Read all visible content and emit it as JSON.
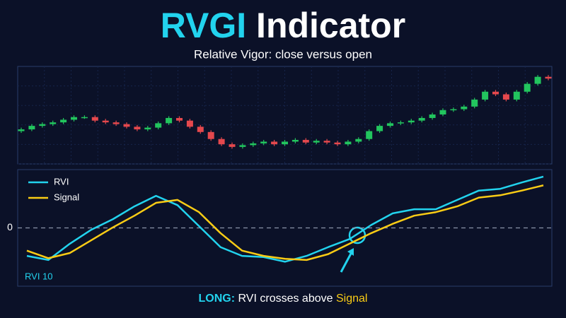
{
  "title_accent": "RVGI",
  "title_rest": "Indicator",
  "subtitle": "Relative Vigor: close versus open",
  "chart_data": [
    {
      "type": "candlestick",
      "up_color": "#22c55e",
      "down_color": "#e5484d",
      "ylim": [
        0,
        100
      ],
      "grid": true,
      "open": [
        31,
        33,
        37,
        39,
        41,
        44,
        47,
        47,
        43,
        41,
        39,
        36,
        33,
        35,
        40,
        46,
        43,
        36,
        30,
        22,
        16,
        13,
        15,
        17,
        19,
        16,
        19,
        21,
        18,
        20,
        18,
        16,
        19,
        22,
        31,
        37,
        40,
        41,
        43,
        46,
        50,
        55,
        56,
        59,
        67,
        76,
        73,
        67,
        76,
        85,
        93
      ],
      "high": [
        35,
        39,
        41,
        43,
        46,
        49,
        49,
        49,
        45,
        43,
        41,
        38,
        37,
        42,
        48,
        48,
        45,
        38,
        32,
        24,
        18,
        17,
        19,
        21,
        21,
        21,
        23,
        23,
        22,
        22,
        20,
        21,
        24,
        33,
        39,
        42,
        43,
        45,
        48,
        52,
        57,
        58,
        61,
        69,
        78,
        78,
        75,
        78,
        87,
        95,
        95
      ],
      "low": [
        29,
        31,
        35,
        37,
        39,
        42,
        45,
        41,
        39,
        37,
        34,
        31,
        31,
        33,
        38,
        41,
        34,
        28,
        20,
        14,
        11,
        11,
        13,
        15,
        14,
        14,
        17,
        16,
        16,
        16,
        14,
        14,
        17,
        20,
        29,
        35,
        38,
        39,
        41,
        44,
        48,
        53,
        54,
        57,
        65,
        71,
        65,
        65,
        74,
        83,
        89
      ],
      "close": [
        33,
        37,
        39,
        41,
        44,
        47,
        47,
        43,
        41,
        39,
        36,
        33,
        35,
        40,
        46,
        43,
        36,
        30,
        22,
        16,
        13,
        15,
        17,
        19,
        16,
        19,
        21,
        18,
        20,
        18,
        16,
        19,
        22,
        31,
        37,
        40,
        41,
        43,
        46,
        50,
        55,
        56,
        59,
        67,
        76,
        73,
        67,
        76,
        85,
        93,
        91
      ]
    },
    {
      "type": "line",
      "ylim": [
        -1,
        1
      ],
      "yticks": [
        0
      ],
      "annotation": "RVI 10",
      "legend": "top-left",
      "series": [
        {
          "name": "RVI",
          "color": "#22d3ee",
          "values": [
            -0.48,
            -0.55,
            -0.27,
            -0.03,
            0.15,
            0.37,
            0.55,
            0.39,
            0.03,
            -0.33,
            -0.48,
            -0.5,
            -0.58,
            -0.48,
            -0.33,
            -0.19,
            0.05,
            0.25,
            0.32,
            0.32,
            0.48,
            0.64,
            0.67,
            0.78,
            0.88
          ]
        },
        {
          "name": "Signal",
          "color": "#facc15",
          "values": [
            -0.39,
            -0.52,
            -0.43,
            -0.21,
            0.01,
            0.21,
            0.43,
            0.48,
            0.27,
            -0.09,
            -0.39,
            -0.48,
            -0.53,
            -0.55,
            -0.45,
            -0.27,
            -0.09,
            0.07,
            0.21,
            0.27,
            0.37,
            0.52,
            0.56,
            0.64,
            0.73
          ]
        }
      ]
    }
  ],
  "footer": {
    "label": "LONG:",
    "text": "RVI crosses above"
  }
}
